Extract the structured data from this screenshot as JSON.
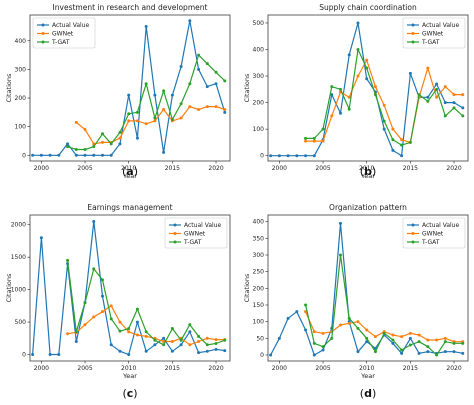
{
  "colors": {
    "actual": "#1f77b4",
    "gwnet": "#ff7f0e",
    "tgat": "#2ca02c"
  },
  "chart_data": [
    {
      "type": "line",
      "title": "Investment in research and development",
      "xlabel": "Year",
      "ylabel": "Citations",
      "panel_label": "a",
      "xlim": [
        1998.7,
        2021.6
      ],
      "ylim": [
        -20,
        490
      ],
      "xticks": [
        2000,
        2005,
        2010,
        2015,
        2020
      ],
      "yticks": [
        0,
        100,
        200,
        300,
        400
      ],
      "legend_position": "top-left",
      "series": [
        {
          "name": "Actual Value",
          "color_key": "actual",
          "x": [
            1999,
            2000,
            2001,
            2002,
            2003,
            2004,
            2005,
            2006,
            2007,
            2008,
            2009,
            2010,
            2011,
            2012,
            2013,
            2014,
            2015,
            2016,
            2017,
            2018,
            2019,
            2020,
            2021
          ],
          "y": [
            0,
            0,
            0,
            0,
            40,
            0,
            0,
            0,
            0,
            0,
            40,
            210,
            60,
            450,
            210,
            10,
            210,
            310,
            470,
            300,
            240,
            250,
            150
          ]
        },
        {
          "name": "GWNet",
          "color_key": "gwnet",
          "x": [
            2004,
            2005,
            2006,
            2007,
            2008,
            2009,
            2010,
            2011,
            2012,
            2013,
            2014,
            2015,
            2016,
            2017,
            2018,
            2019,
            2020,
            2021
          ],
          "y": [
            115,
            90,
            40,
            45,
            45,
            60,
            120,
            120,
            110,
            120,
            160,
            120,
            130,
            170,
            160,
            170,
            170,
            160
          ]
        },
        {
          "name": "T-GAT",
          "color_key": "tgat",
          "x": [
            2003,
            2004,
            2005,
            2006,
            2007,
            2008,
            2009,
            2010,
            2011,
            2012,
            2013,
            2014,
            2015,
            2016,
            2017,
            2018,
            2019,
            2020,
            2021
          ],
          "y": [
            30,
            20,
            20,
            30,
            75,
            40,
            80,
            145,
            150,
            250,
            130,
            225,
            125,
            180,
            250,
            350,
            320,
            290,
            260
          ]
        }
      ]
    },
    {
      "type": "line",
      "title": "Supply chain coordination",
      "xlabel": "Year",
      "ylabel": "Citations",
      "panel_label": "b",
      "xlim": [
        1998.7,
        2021.6
      ],
      "ylim": [
        -20,
        530
      ],
      "xticks": [
        2000,
        2005,
        2010,
        2015,
        2020
      ],
      "yticks": [
        0,
        100,
        200,
        300,
        400,
        500
      ],
      "legend_position": "top-right",
      "series": [
        {
          "name": "Actual Value",
          "color_key": "actual",
          "x": [
            1999,
            2000,
            2001,
            2002,
            2003,
            2004,
            2005,
            2006,
            2007,
            2008,
            2009,
            2010,
            2011,
            2012,
            2013,
            2014,
            2015,
            2016,
            2017,
            2018,
            2019,
            2020,
            2021
          ],
          "y": [
            0,
            0,
            0,
            0,
            0,
            0,
            60,
            230,
            160,
            380,
            500,
            290,
            240,
            100,
            20,
            0,
            310,
            220,
            220,
            270,
            200,
            200,
            180
          ]
        },
        {
          "name": "GWNet",
          "color_key": "gwnet",
          "x": [
            2003,
            2004,
            2005,
            2006,
            2007,
            2008,
            2009,
            2010,
            2011,
            2012,
            2013,
            2014,
            2015,
            2016,
            2017,
            2018,
            2019,
            2020,
            2021
          ],
          "y": [
            55,
            55,
            55,
            150,
            240,
            220,
            300,
            360,
            260,
            190,
            100,
            60,
            50,
            220,
            330,
            220,
            260,
            230,
            230
          ]
        },
        {
          "name": "T-GAT",
          "color_key": "tgat",
          "x": [
            2003,
            2004,
            2005,
            2006,
            2007,
            2008,
            2009,
            2010,
            2011,
            2012,
            2013,
            2014,
            2015,
            2016,
            2017,
            2018,
            2019,
            2020,
            2021
          ],
          "y": [
            65,
            65,
            100,
            260,
            250,
            175,
            400,
            330,
            230,
            130,
            60,
            40,
            50,
            230,
            205,
            250,
            150,
            180,
            150
          ]
        }
      ]
    },
    {
      "type": "line",
      "title": "Earnings management",
      "xlabel": "Year",
      "ylabel": "Citations",
      "panel_label": "c",
      "xlim": [
        1998.7,
        2021.6
      ],
      "ylim": [
        -100,
        2150
      ],
      "xticks": [
        2000,
        2005,
        2010,
        2015,
        2020
      ],
      "yticks": [
        0,
        500,
        1000,
        1500,
        2000
      ],
      "legend_position": "top-right",
      "series": [
        {
          "name": "Actual Value",
          "color_key": "actual",
          "x": [
            1999,
            2000,
            2001,
            2002,
            2003,
            2004,
            2005,
            2006,
            2007,
            2008,
            2009,
            2010,
            2011,
            2012,
            2013,
            2014,
            2015,
            2016,
            2017,
            2018,
            2019,
            2020,
            2021
          ],
          "y": [
            0,
            1800,
            0,
            0,
            1400,
            200,
            800,
            2050,
            900,
            150,
            50,
            0,
            500,
            50,
            150,
            250,
            50,
            150,
            350,
            30,
            50,
            80,
            60
          ]
        },
        {
          "name": "GWNet",
          "color_key": "gwnet",
          "x": [
            2003,
            2004,
            2005,
            2006,
            2007,
            2008,
            2009,
            2010,
            2011,
            2012,
            2013,
            2014,
            2015,
            2016,
            2017,
            2018,
            2019,
            2020,
            2021
          ],
          "y": [
            320,
            340,
            460,
            580,
            660,
            750,
            500,
            350,
            300,
            280,
            250,
            200,
            200,
            250,
            150,
            200,
            250,
            230,
            230
          ]
        },
        {
          "name": "T-GAT",
          "color_key": "tgat",
          "x": [
            2003,
            2004,
            2005,
            2006,
            2007,
            2008,
            2009,
            2010,
            2011,
            2012,
            2013,
            2014,
            2015,
            2016,
            2017,
            2018,
            2019,
            2020,
            2021
          ],
          "y": [
            1450,
            350,
            800,
            1320,
            1150,
            550,
            360,
            400,
            700,
            350,
            220,
            150,
            400,
            220,
            460,
            280,
            150,
            170,
            220
          ]
        }
      ]
    },
    {
      "type": "line",
      "title": "Organization pattern",
      "xlabel": "Year",
      "ylabel": "Citations",
      "panel_label": "d",
      "xlim": [
        1998.7,
        2021.6
      ],
      "ylim": [
        -18,
        420
      ],
      "xticks": [
        2000,
        2005,
        2010,
        2015,
        2020
      ],
      "yticks": [
        0,
        50,
        100,
        150,
        200,
        250,
        300,
        350,
        400
      ],
      "legend_position": "top-right",
      "series": [
        {
          "name": "Actual Value",
          "color_key": "actual",
          "x": [
            1999,
            2000,
            2001,
            2002,
            2003,
            2004,
            2005,
            2006,
            2007,
            2008,
            2009,
            2010,
            2011,
            2012,
            2013,
            2014,
            2015,
            2016,
            2017,
            2018,
            2019,
            2020,
            2021
          ],
          "y": [
            0,
            50,
            110,
            130,
            75,
            0,
            15,
            80,
            395,
            100,
            10,
            40,
            20,
            60,
            35,
            5,
            50,
            5,
            10,
            5,
            10,
            10,
            5
          ]
        },
        {
          "name": "GWNet",
          "color_key": "gwnet",
          "x": [
            2003,
            2004,
            2005,
            2006,
            2007,
            2008,
            2009,
            2010,
            2011,
            2012,
            2013,
            2014,
            2015,
            2016,
            2017,
            2018,
            2019,
            2020,
            2021
          ],
          "y": [
            130,
            70,
            65,
            70,
            90,
            95,
            100,
            75,
            55,
            70,
            60,
            55,
            65,
            60,
            45,
            45,
            50,
            40,
            40
          ]
        },
        {
          "name": "T-GAT",
          "color_key": "tgat",
          "x": [
            2003,
            2004,
            2005,
            2006,
            2007,
            2008,
            2009,
            2010,
            2011,
            2012,
            2013,
            2014,
            2015,
            2016,
            2017,
            2018,
            2019,
            2020,
            2021
          ],
          "y": [
            150,
            35,
            25,
            50,
            300,
            110,
            80,
            50,
            10,
            65,
            45,
            15,
            30,
            40,
            25,
            0,
            40,
            35,
            35
          ]
        }
      ]
    }
  ]
}
